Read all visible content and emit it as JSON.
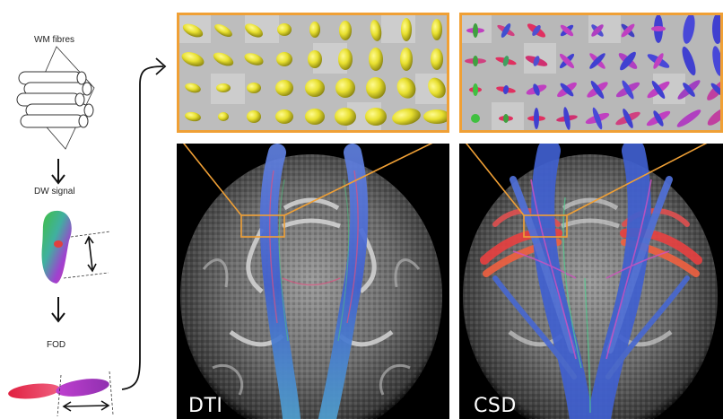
{
  "pipeline": {
    "stage1_label": "WM fibres",
    "stage2_label": "DW signal",
    "stage3_label": "FOD"
  },
  "panels": {
    "left_label": "DTI",
    "right_label": "CSD"
  },
  "colors": {
    "zoom_frame": "#f0a035",
    "tensor_glyph": "#e8e030",
    "brain_background": "#000000",
    "tract_blue": "#4060d0",
    "tract_red": "#e05040",
    "fod_magenta": "#c040c0",
    "fod_blue": "#4040d0"
  }
}
